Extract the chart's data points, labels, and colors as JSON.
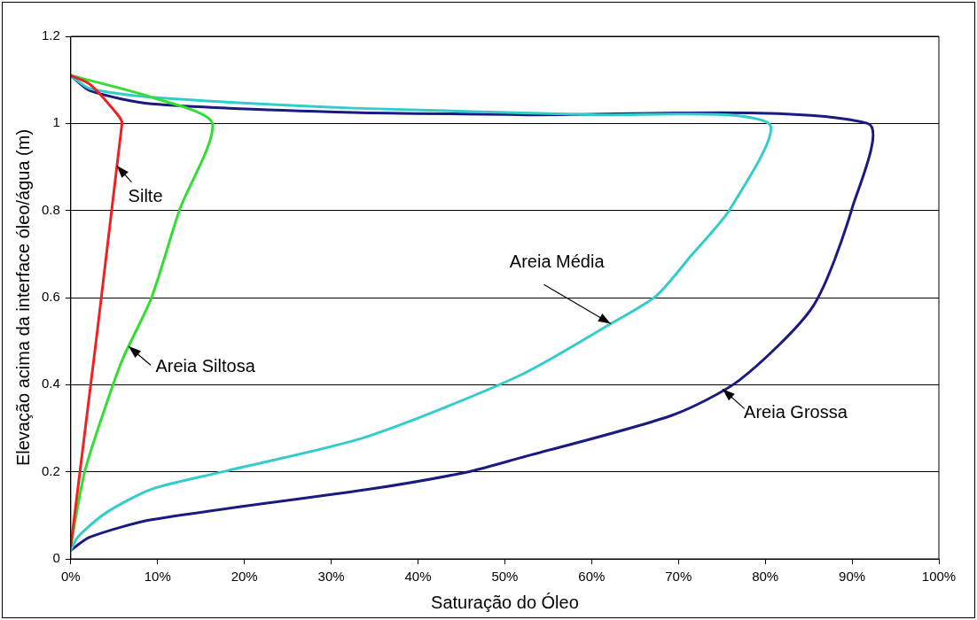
{
  "chart_data": {
    "type": "line",
    "xlabel": "Saturação do Óleo",
    "ylabel": "Elevação acima da interface óleo/água (m)",
    "xlim": [
      0,
      100
    ],
    "xticks": [
      {
        "value": 0,
        "label": "0%"
      },
      {
        "value": 10,
        "label": "10%"
      },
      {
        "value": 20,
        "label": "20%"
      },
      {
        "value": 30,
        "label": "30%"
      },
      {
        "value": 40,
        "label": "40%"
      },
      {
        "value": 50,
        "label": "50%"
      },
      {
        "value": 60,
        "label": "60%"
      },
      {
        "value": 70,
        "label": "70%"
      },
      {
        "value": 80,
        "label": "80%"
      },
      {
        "value": 90,
        "label": "90%"
      },
      {
        "value": 100,
        "label": "100%"
      }
    ],
    "ylim": [
      0,
      1.2
    ],
    "yticks": [
      0,
      0.2,
      0.4,
      0.6,
      0.8,
      1,
      1.2
    ],
    "grid": "y",
    "legend": false,
    "marker": "none",
    "line_style": "solid",
    "series": [
      {
        "name": "Silte",
        "color": "#ee2222",
        "x": [
          0,
          2.2,
          5.4,
          5.9,
          0
        ],
        "values": [
          1.11,
          1.09,
          1.02,
          1.0,
          0.03
        ]
      },
      {
        "name": "Areia Siltosa",
        "color": "#33dd33",
        "x": [
          0,
          9.3,
          16.3,
          12.5,
          9.3,
          6,
          4,
          1.6,
          0
        ],
        "values": [
          1.11,
          1.06,
          1.0,
          0.8,
          0.6,
          0.46,
          0.35,
          0.2,
          0.03
        ]
      },
      {
        "name": "Areia Média",
        "color": "#33cccc",
        "x": [
          0,
          2.2,
          9.3,
          32.6,
          60,
          80.4,
          76,
          71.4,
          67.5,
          62.2,
          51.6,
          34,
          17.5,
          9.3,
          4,
          0.8,
          0
        ],
        "values": [
          1.11,
          1.08,
          1.06,
          1.035,
          1.02,
          1.0,
          0.805,
          0.695,
          0.605,
          0.54,
          0.42,
          0.28,
          0.2,
          0.16,
          0.105,
          0.05,
          0.02
        ]
      },
      {
        "name": "Areia Grossa",
        "color": "#1a1a80",
        "x": [
          0,
          2.2,
          9.3,
          32.6,
          51.6,
          91.8,
          90,
          85.5,
          77,
          69.3,
          51.6,
          45.8,
          34.4,
          9.3,
          2.2,
          0
        ],
        "values": [
          1.11,
          1.075,
          1.045,
          1.025,
          1.02,
          1.0,
          0.805,
          0.58,
          0.41,
          0.33,
          0.231,
          0.2,
          0.16,
          0.09,
          0.05,
          0.02
        ]
      }
    ]
  }
}
